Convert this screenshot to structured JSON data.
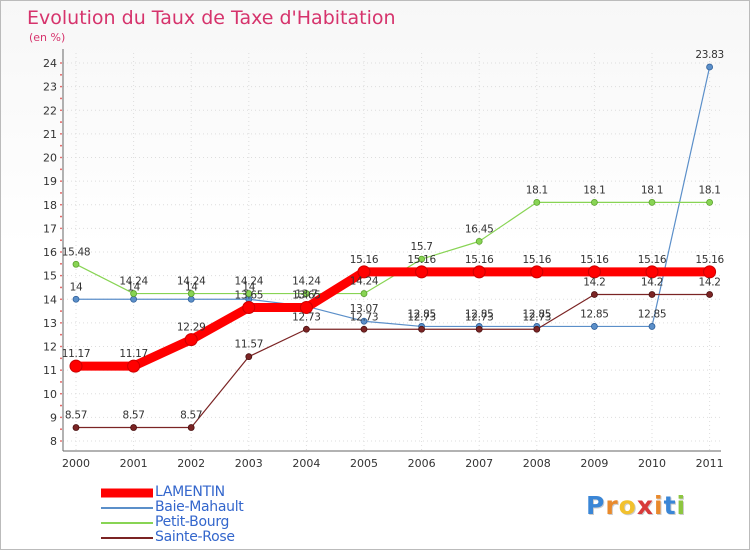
{
  "chart_data": {
    "type": "line",
    "title": "Evolution du Taux de Taxe d'Habitation",
    "subtitle": "(en %)",
    "x": [
      "2000",
      "2001",
      "2002",
      "2003",
      "2004",
      "2005",
      "2006",
      "2007",
      "2008",
      "2009",
      "2010",
      "2011"
    ],
    "ylim": [
      8,
      24
    ],
    "yticks": [
      "8",
      "9",
      "10",
      "11",
      "12",
      "13",
      "14",
      "15",
      "16",
      "17",
      "18",
      "19",
      "20",
      "21",
      "22",
      "23",
      "24"
    ],
    "series": [
      {
        "name": "LAMENTIN",
        "color": "#ff0000",
        "values": [
          11.17,
          11.17,
          12.29,
          13.65,
          13.65,
          15.16,
          15.16,
          15.16,
          15.16,
          15.16,
          15.16,
          15.16
        ],
        "labels": [
          "11.17",
          "11.17",
          "12.29",
          "13.65",
          "13.65",
          "15.16",
          "15.16",
          "15.16",
          "15.16",
          "15.16",
          "15.16",
          "15.16"
        ]
      },
      {
        "name": "Baie-Mahault",
        "color": "#5b8fc9",
        "values": [
          14,
          14,
          14,
          14,
          13.7,
          13.07,
          12.85,
          12.85,
          12.85,
          12.85,
          12.85,
          23.83
        ],
        "labels": [
          "14",
          "14",
          "14",
          "14",
          "13.7",
          "13.07",
          "12.85",
          "12.85",
          "12.85",
          "12.85",
          "12.85",
          "23.83"
        ]
      },
      {
        "name": "Petit-Bourg",
        "color": "#88d454",
        "values": [
          15.48,
          14.24,
          14.24,
          14.24,
          14.24,
          14.24,
          15.7,
          16.45,
          18.1,
          18.1,
          18.1,
          18.1
        ],
        "labels": [
          "15.48",
          "14.24",
          "14.24",
          "14.24",
          "14.24",
          "14.24",
          "15.7",
          "16.45",
          "18.1",
          "18.1",
          "18.1",
          "18.1"
        ]
      },
      {
        "name": "Sainte-Rose",
        "color": "#7b2424",
        "values": [
          8.57,
          8.57,
          8.57,
          11.57,
          12.73,
          12.73,
          12.73,
          12.73,
          12.73,
          14.2,
          14.2,
          14.2
        ],
        "labels": [
          "8.57",
          "8.57",
          "8.57",
          "11.57",
          "12.73",
          "12.73",
          "12.73",
          "12.73",
          "12.73",
          "14.2",
          "14.2",
          "14.2"
        ]
      }
    ],
    "legend": [
      "LAMENTIN",
      "Baie-Mahault",
      "Petit-Bourg",
      "Sainte-Rose"
    ]
  },
  "brand": {
    "letters": [
      "P",
      "r",
      "o",
      "x",
      "i",
      "t",
      "i"
    ],
    "colors": [
      "#3a86d6",
      "#e98a2c",
      "#f2c12e",
      "#d83a3a",
      "#e98a2c",
      "#3a86d6",
      "#8dc63f"
    ]
  }
}
